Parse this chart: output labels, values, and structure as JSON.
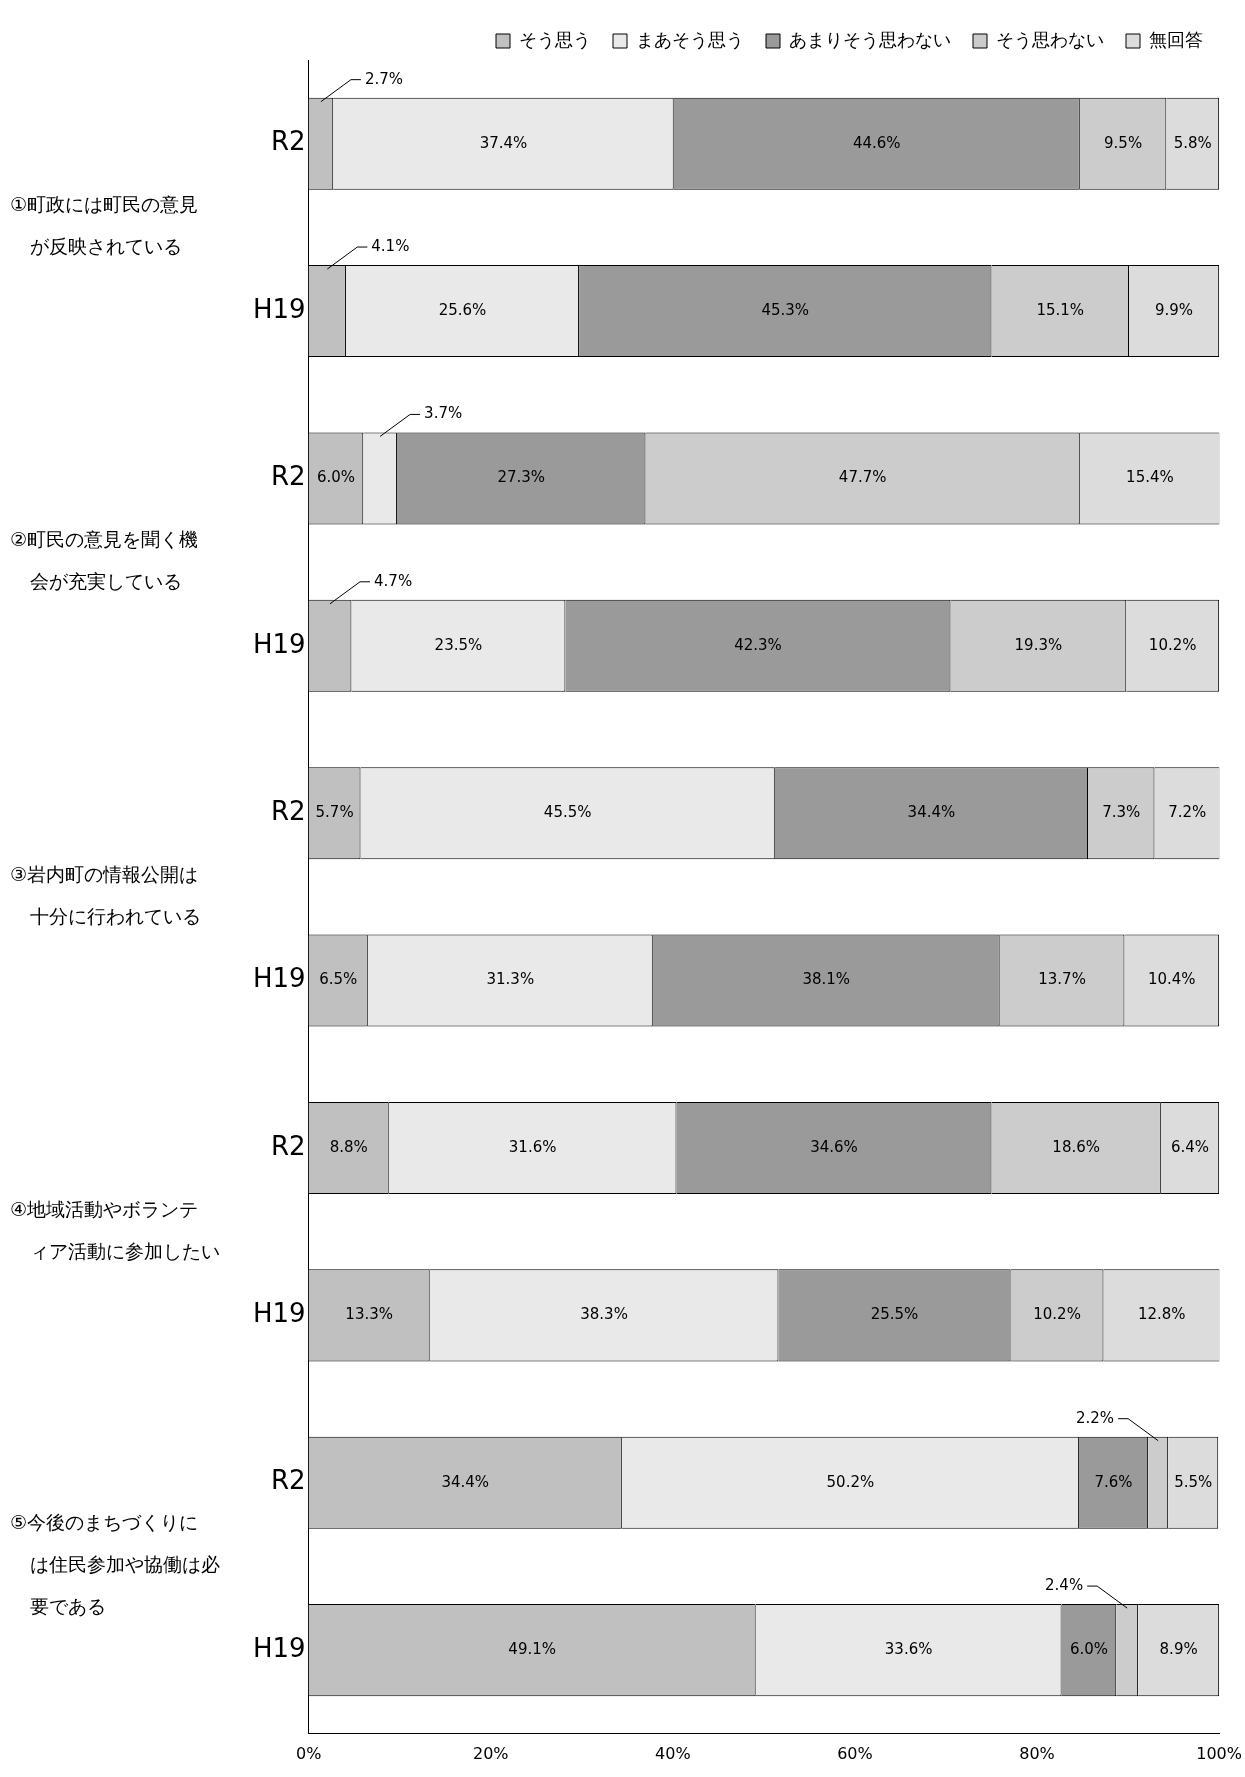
{
  "chart_data": {
    "type": "bar",
    "orientation": "horizontal",
    "stacked": true,
    "grid": false,
    "legend": "top right",
    "categories": [
      "R2",
      "H19",
      "R2",
      "H19",
      "R2",
      "H19",
      "R2",
      "H19",
      "R2",
      "H19"
    ],
    "xlim": [
      0,
      100
    ],
    "xticks": [
      {
        "value": 0,
        "label": "0%"
      },
      {
        "value": 20,
        "label": "20%"
      },
      {
        "value": 40,
        "label": "40%"
      },
      {
        "value": 60,
        "label": "60%"
      },
      {
        "value": 80,
        "label": "80%"
      },
      {
        "value": 100,
        "label": "100%"
      }
    ],
    "series": [
      {
        "name": "そう思う",
        "color": "#c0c0c0",
        "values": [
          2.7,
          4.1,
          6.0,
          4.7,
          5.7,
          6.5,
          8.8,
          13.3,
          34.4,
          49.1
        ],
        "value_labels": [
          "2.7%",
          "4.1%",
          "6.0%",
          "4.7%",
          "5.7%",
          "6.5%",
          "8.8%",
          "13.3%",
          "34.4%",
          "49.1%"
        ]
      },
      {
        "name": "まあそう思う",
        "color": "#e9e9e9",
        "values": [
          37.4,
          25.6,
          3.7,
          23.5,
          45.5,
          31.3,
          31.6,
          38.3,
          50.2,
          33.6
        ],
        "value_labels": [
          "37.4%",
          "25.6%",
          "3.7%",
          "23.5%",
          "45.5%",
          "31.3%",
          "31.6%",
          "38.3%",
          "50.2%",
          "33.6%"
        ]
      },
      {
        "name": "あまりそう思わない",
        "color": "#9a9a9a",
        "values": [
          44.6,
          45.3,
          27.3,
          42.3,
          34.4,
          38.1,
          34.6,
          25.5,
          7.6,
          6.0
        ],
        "value_labels": [
          "44.6%",
          "45.3%",
          "27.3%",
          "42.3%",
          "34.4%",
          "38.1%",
          "34.6%",
          "25.5%",
          "7.6%",
          "6.0%"
        ]
      },
      {
        "name": "そう思わない",
        "color": "#cccccc",
        "values": [
          9.5,
          15.1,
          47.7,
          19.3,
          7.3,
          13.7,
          18.6,
          10.2,
          2.2,
          2.4
        ],
        "value_labels": [
          "9.5%",
          "15.1%",
          "47.7%",
          "19.3%",
          "7.3%",
          "13.7%",
          "18.6%",
          "10.2%",
          "2.2%",
          "2.4%"
        ]
      },
      {
        "name": "無回答",
        "color": "#dcdcdc",
        "values": [
          5.8,
          9.9,
          15.4,
          10.2,
          7.2,
          10.4,
          6.4,
          12.8,
          5.5,
          8.9
        ],
        "value_labels": [
          "5.8%",
          "9.9%",
          "15.4%",
          "10.2%",
          "7.2%",
          "10.4%",
          "6.4%",
          "12.8%",
          "5.5%",
          "8.9%"
        ]
      }
    ],
    "annotations": [
      "①町政には町民の意見が反映されている",
      "②町民の意見を聞く機会が充実している",
      "③岩内町の情報公開は十分に行われている",
      "④地域活動やボランティア活動に参加したい",
      "⑤今後のまちづくりには住民参加や協働は必要である"
    ]
  }
}
